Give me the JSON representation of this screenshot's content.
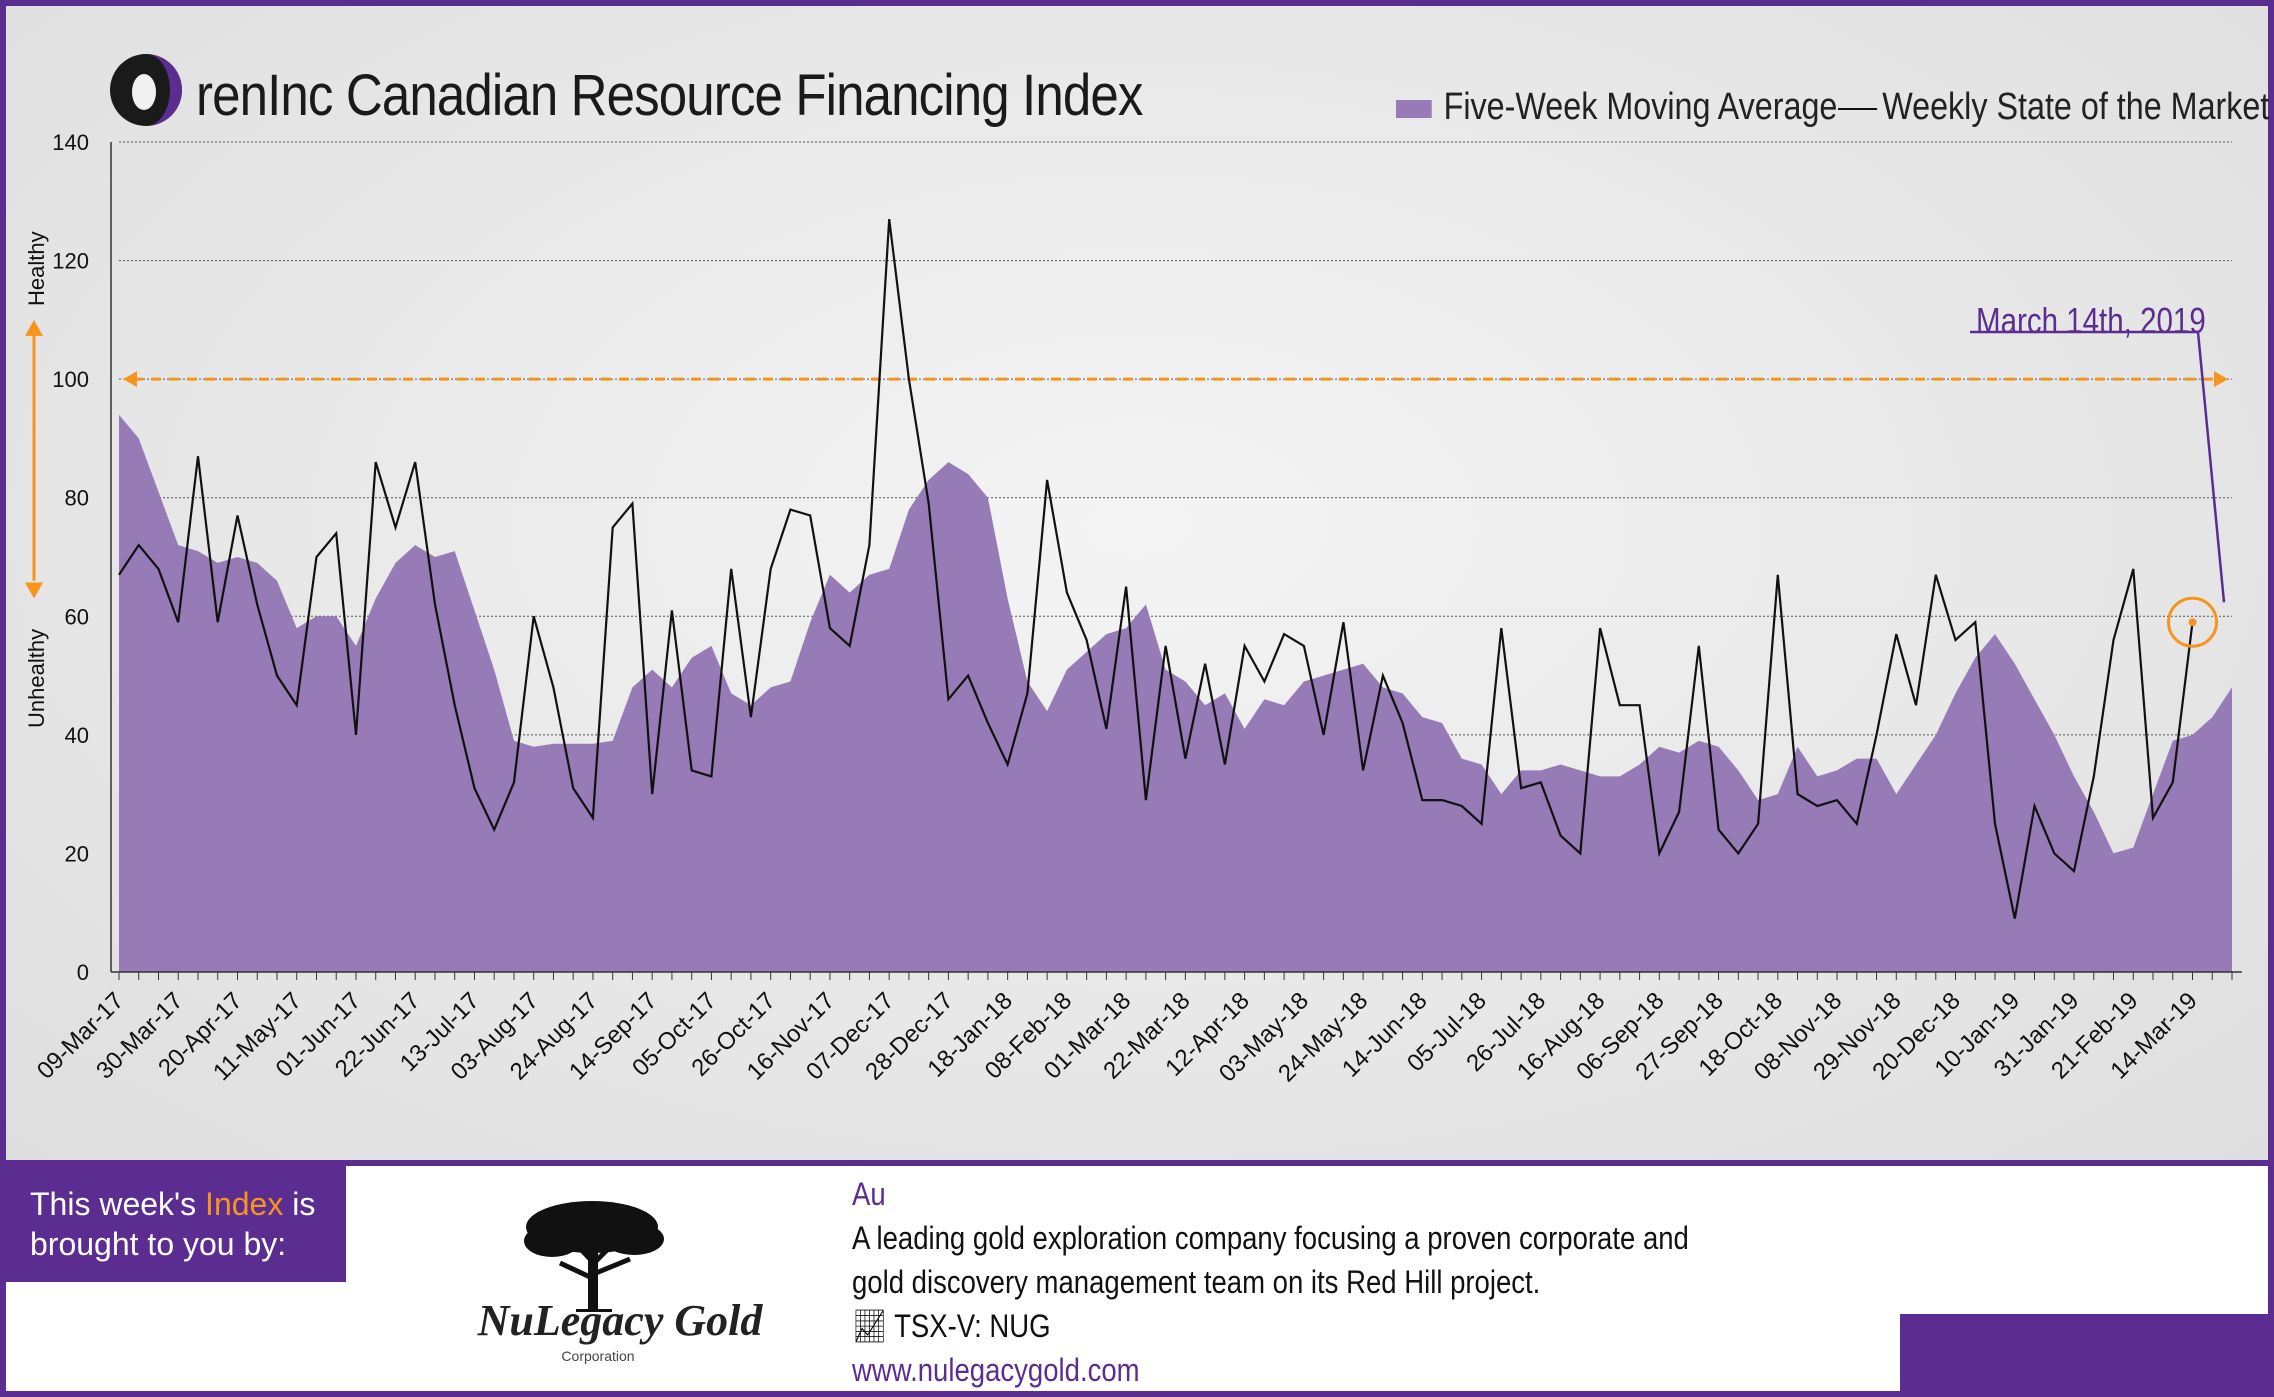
{
  "header": {
    "logo_text": "O",
    "title": "renInc Canadian Resource Financing Index"
  },
  "legend": {
    "area_label": "Five-Week Moving Average",
    "line_label": "Weekly State of the Market"
  },
  "annotations": {
    "callout": "March 14th, 2019",
    "healthy": "Healthy",
    "unhealthy": "Unhealthy",
    "threshold_value": 100
  },
  "colors": {
    "area": "#967bb6",
    "line": "#111111",
    "threshold": "#f7941d",
    "brand_purple": "#5c2d91"
  },
  "chart_data": {
    "type": "area",
    "title": "Canadian Resource Financing Index",
    "xlabel": "",
    "ylabel": "",
    "ylim": [
      0,
      140
    ],
    "yticks": [
      0,
      20,
      40,
      60,
      80,
      100,
      120,
      140
    ],
    "grid": true,
    "legend_position": "top-right",
    "x_tick_labels": [
      "09-Mar-17",
      "30-Mar-17",
      "20-Apr-17",
      "11-May-17",
      "01-Jun-17",
      "22-Jun-17",
      "13-Jul-17",
      "03-Aug-17",
      "24-Aug-17",
      "14-Sep-17",
      "05-Oct-17",
      "26-Oct-17",
      "16-Nov-17",
      "07-Dec-17",
      "28-Dec-17",
      "18-Jan-18",
      "08-Feb-18",
      "01-Mar-18",
      "22-Mar-18",
      "12-Apr-18",
      "03-May-18",
      "24-May-18",
      "14-Jun-18",
      "05-Jul-18",
      "26-Jul-18",
      "16-Aug-18",
      "06-Sep-18",
      "27-Sep-18",
      "18-Oct-18",
      "08-Nov-18",
      "29-Nov-18",
      "20-Dec-18",
      "10-Jan-19",
      "31-Jan-19",
      "21-Feb-19",
      "14-Mar-19"
    ],
    "series": [
      {
        "name": "Five-Week Moving Average",
        "kind": "area",
        "values": [
          94,
          90,
          81,
          72,
          71,
          69,
          70,
          69,
          66,
          58,
          60,
          60,
          55,
          63,
          69,
          72,
          70,
          71,
          61,
          51,
          39,
          38,
          38.5,
          38.5,
          38.5,
          39,
          48,
          51,
          48,
          53,
          55,
          47,
          45,
          48,
          49,
          59,
          67,
          64,
          67,
          68,
          78,
          83,
          86,
          84,
          80,
          63,
          49,
          44,
          51,
          54,
          57,
          58,
          62,
          51,
          49,
          45,
          47,
          41,
          46,
          45,
          49,
          50,
          51,
          52,
          48,
          47,
          43,
          42,
          36,
          35,
          30,
          34,
          34,
          35,
          34,
          33,
          33,
          35,
          38,
          37,
          39,
          38,
          34,
          29,
          30,
          38,
          33,
          34,
          36,
          36,
          30,
          35,
          40,
          47,
          53,
          57,
          52,
          46,
          40,
          33,
          27,
          20,
          21,
          30,
          39,
          40,
          43,
          48
        ],
        "comment": "Weekly values from 09-Mar-17 through 21-Mar-19"
      },
      {
        "name": "Weekly State of the Market",
        "kind": "line",
        "values": [
          67,
          72,
          68,
          59,
          87,
          59,
          77,
          62,
          50,
          45,
          70,
          74,
          40,
          86,
          75,
          86,
          62,
          45,
          31,
          24,
          32,
          60,
          48,
          31,
          26,
          75,
          79,
          30,
          61,
          34,
          33,
          68,
          43,
          68,
          78,
          77,
          58,
          55,
          72,
          127,
          100,
          79,
          46,
          50,
          42,
          35,
          47,
          83,
          64,
          56,
          41,
          65,
          29,
          55,
          36,
          52,
          35,
          55,
          49,
          57,
          55,
          40,
          59,
          34,
          50,
          42,
          29,
          29,
          28,
          25,
          58,
          31,
          32,
          23,
          20,
          58,
          45,
          45,
          20,
          27,
          55,
          24,
          20,
          25,
          67,
          30,
          28,
          29,
          25,
          40,
          57,
          45,
          67,
          56,
          59,
          25,
          9,
          28,
          20,
          17,
          33,
          56,
          68,
          26,
          32,
          59
        ]
      }
    ]
  },
  "sponsor": {
    "label_part1": "This week's ",
    "label_highlight": "Index",
    "label_part2": " is brought to you by:",
    "company_name": "NuLegacy Gold",
    "company_sub": "Corporation",
    "au": "Au",
    "desc_line1": "A leading gold exploration company focusing a proven corporate and",
    "desc_line2": "gold discovery management team on its Red Hill project.",
    "ticker": "TSX-V:  NUG",
    "url": "www.nulegacygold.com"
  }
}
